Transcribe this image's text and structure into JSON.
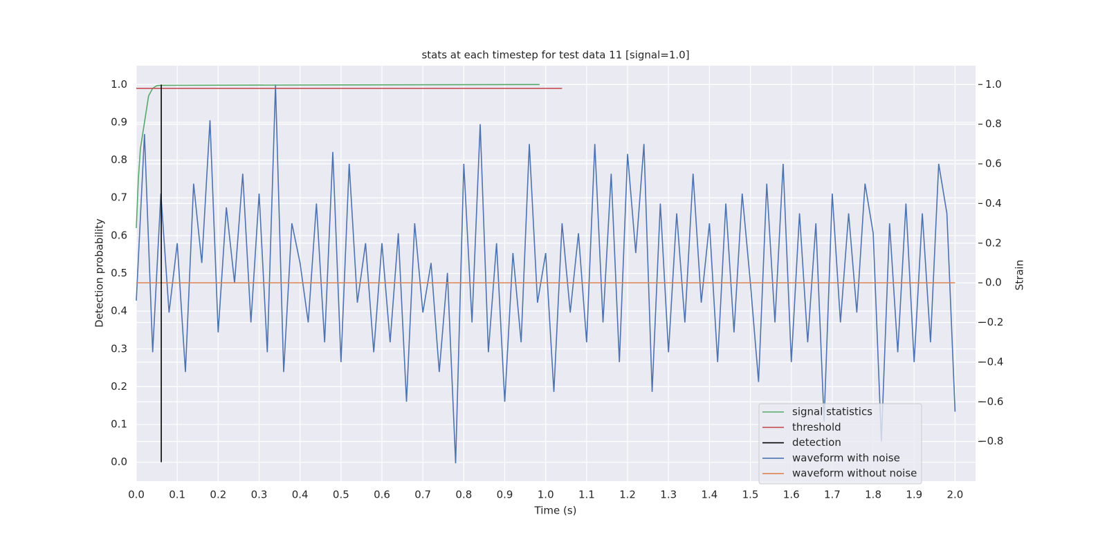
{
  "chart_data": {
    "type": "line",
    "title": "stats at each timestep for test data 11 [signal=1.0]",
    "xlabel": "Time (s)",
    "ylabel": "Detection probability",
    "y2label": "Strain",
    "xlim": [
      0,
      2.05
    ],
    "ylim": [
      -0.05,
      1.05
    ],
    "y2lim": [
      -1.0,
      1.095
    ],
    "xticks": [
      {
        "value": 0,
        "label": "0.0"
      },
      0.1,
      0.2,
      0.3,
      0.4,
      0.5,
      0.6,
      0.7,
      0.8,
      0.9,
      {
        "value": 1,
        "label": "1.0"
      },
      1.1,
      1.2,
      1.3,
      1.4,
      1.5,
      1.6,
      1.7,
      1.8,
      1.9,
      {
        "value": 2,
        "label": "2.0"
      }
    ],
    "yticks": [
      {
        "value": 0,
        "label": "0.0"
      },
      0.1,
      0.2,
      0.3,
      0.4,
      0.5,
      0.6,
      0.7,
      0.8,
      0.9,
      {
        "value": 1,
        "label": "1.0"
      }
    ],
    "y2ticks": [
      {
        "value": -0.8,
        "label": "−0.8"
      },
      {
        "value": -0.6,
        "label": "−0.6"
      },
      {
        "value": -0.4,
        "label": "−0.4"
      },
      {
        "value": -0.2,
        "label": "−0.2"
      },
      {
        "value": 0,
        "label": "0.0"
      },
      0.2,
      0.4,
      0.6,
      0.8,
      {
        "value": 1,
        "label": "1.0"
      }
    ],
    "grid": true,
    "legend": "lower right",
    "series": [
      {
        "name": "signal statistics",
        "color": "#55a868",
        "axis": "y",
        "x": [
          0,
          0.005,
          0.01,
          0.02,
          0.03,
          0.04,
          0.05,
          0.06,
          0.985
        ],
        "values": [
          0.62,
          0.75,
          0.83,
          0.9,
          0.97,
          0.99,
          0.997,
          0.998,
          1.0
        ]
      },
      {
        "name": "threshold",
        "color": "#c44e52",
        "axis": "y",
        "x": [
          0,
          1.04
        ],
        "values": [
          0.99,
          0.99
        ]
      },
      {
        "name": "detection",
        "color": "#000000",
        "axis": "y",
        "x": [
          0.061,
          0.061
        ],
        "values": [
          0,
          1
        ]
      },
      {
        "name": "waveform with noise",
        "color": "#4c72b0",
        "axis": "y2",
        "x": [
          0,
          0.02,
          0.04,
          0.06,
          0.08,
          0.1,
          0.12,
          0.14,
          0.16,
          0.18,
          0.2,
          0.22,
          0.24,
          0.26,
          0.28,
          0.3,
          0.32,
          0.34,
          0.36,
          0.38,
          0.4,
          0.42,
          0.44,
          0.46,
          0.48,
          0.5,
          0.52,
          0.54,
          0.56,
          0.58,
          0.6,
          0.62,
          0.64,
          0.66,
          0.68,
          0.7,
          0.72,
          0.74,
          0.76,
          0.78,
          0.8,
          0.82,
          0.84,
          0.86,
          0.88,
          0.9,
          0.92,
          0.94,
          0.96,
          0.98,
          1.0,
          1.02,
          1.04,
          1.06,
          1.08,
          1.1,
          1.12,
          1.14,
          1.16,
          1.18,
          1.2,
          1.22,
          1.24,
          1.26,
          1.28,
          1.3,
          1.32,
          1.34,
          1.36,
          1.38,
          1.4,
          1.42,
          1.44,
          1.46,
          1.48,
          1.5,
          1.52,
          1.54,
          1.56,
          1.58,
          1.6,
          1.62,
          1.64,
          1.66,
          1.68,
          1.7,
          1.72,
          1.74,
          1.76,
          1.78,
          1.8,
          1.82,
          1.84,
          1.86,
          1.88,
          1.9,
          1.92,
          1.94,
          1.96,
          1.98,
          2.0
        ],
        "values": [
          -0.09,
          0.75,
          -0.35,
          0.45,
          -0.15,
          0.2,
          -0.45,
          0.5,
          0.1,
          0.82,
          -0.25,
          0.38,
          0.0,
          0.55,
          -0.2,
          0.45,
          -0.35,
          1.0,
          -0.45,
          0.3,
          0.1,
          -0.2,
          0.4,
          -0.3,
          0.66,
          -0.4,
          0.6,
          -0.1,
          0.2,
          -0.35,
          0.2,
          -0.3,
          0.25,
          -0.6,
          0.3,
          -0.15,
          0.1,
          -0.45,
          0.05,
          -0.91,
          0.6,
          -0.2,
          0.8,
          -0.35,
          0.2,
          -0.6,
          0.15,
          -0.3,
          0.7,
          -0.1,
          0.15,
          -0.55,
          0.3,
          -0.15,
          0.25,
          -0.3,
          0.7,
          -0.2,
          0.55,
          -0.4,
          0.65,
          0.15,
          0.7,
          -0.55,
          0.4,
          -0.35,
          0.35,
          -0.2,
          0.55,
          -0.1,
          0.3,
          -0.4,
          0.4,
          -0.25,
          0.45,
          0.0,
          -0.5,
          0.5,
          -0.2,
          0.6,
          -0.4,
          0.35,
          -0.3,
          0.3,
          -0.7,
          0.45,
          -0.2,
          0.35,
          -0.15,
          0.5,
          0.25,
          -0.8,
          0.3,
          -0.35,
          0.4,
          -0.4,
          0.35,
          -0.3,
          0.6,
          0.35,
          -0.65
        ]
      },
      {
        "name": "waveform without noise",
        "color": "#dd8452",
        "axis": "y2",
        "x": [
          0,
          2.0
        ],
        "values": [
          0,
          0
        ]
      }
    ]
  }
}
